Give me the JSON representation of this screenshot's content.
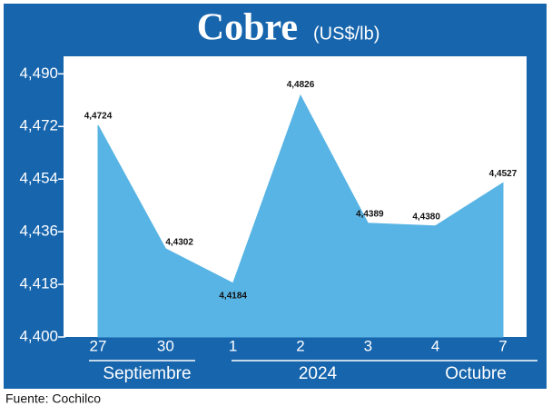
{
  "chart_data": {
    "type": "area",
    "title": "Cobre",
    "subtitle": "(US$/lb)",
    "categories": [
      "27",
      "30",
      "1",
      "2",
      "3",
      "4",
      "7"
    ],
    "x_groups": [
      "Septiembre",
      "2024",
      "Octubre"
    ],
    "values": [
      4.4724,
      4.4302,
      4.4184,
      4.4826,
      4.4389,
      4.438,
      4.4527
    ],
    "value_labels": [
      "4,4724",
      "4,4302",
      "4,4184",
      "4,4826",
      "4,4389",
      "4,4380",
      "4,4527"
    ],
    "color": "#58b4e4",
    "ylim": [
      4.4,
      4.496
    ],
    "yticks": [
      {
        "value": 4.4,
        "label": "4,400"
      },
      {
        "value": 4.418,
        "label": "4,418"
      },
      {
        "value": 4.436,
        "label": "4,436"
      },
      {
        "value": 4.454,
        "label": "4,454"
      },
      {
        "value": 4.472,
        "label": "4,472"
      },
      {
        "value": 4.49,
        "label": "4,490"
      }
    ],
    "source": "Fuente: Cochilco"
  }
}
